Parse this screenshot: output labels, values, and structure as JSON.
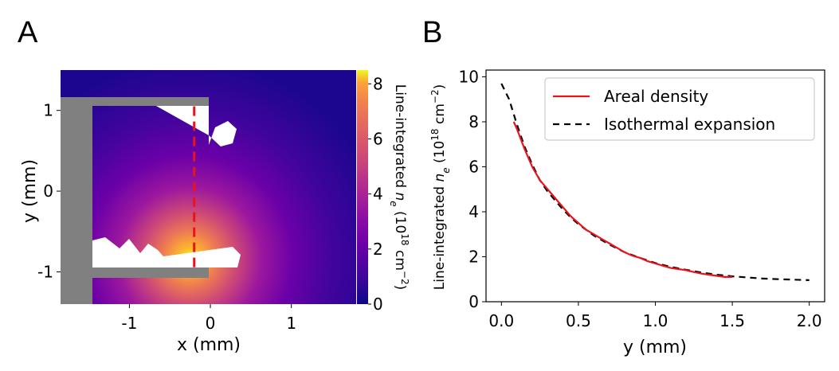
{
  "panel_labels": {
    "a": "A",
    "b": "B"
  },
  "chart_data": [
    {
      "type": "heatmap",
      "panel": "A",
      "title": "",
      "xlabel": "x (mm)",
      "ylabel": "y (mm)",
      "xlim": [
        -1.85,
        1.8
      ],
      "ylim": [
        -1.4,
        1.5
      ],
      "xticks": [
        -1,
        0,
        1
      ],
      "xtick_labels": [
        "-1",
        "0",
        "1"
      ],
      "yticks": [
        1,
        0,
        -1
      ],
      "ytick_labels": [
        "1",
        "0",
        "-1"
      ],
      "colorbar": {
        "label_prefix": "Line-integrated ",
        "label_var": "n",
        "label_sub": "e",
        "label_units_open": " (10",
        "label_units_exp": "18",
        "label_units_mid": " cm",
        "label_units_exp2": "−2",
        "label_units_close": ")",
        "min": 0,
        "max": 8.5,
        "ticks": [
          0,
          2,
          4,
          6,
          8
        ],
        "tick_labels": [
          "0",
          "2",
          "4",
          "6",
          "8"
        ],
        "colormap": "plasma"
      },
      "peak_density": 8.5,
      "peak_location": [
        -0.3,
        -0.85
      ],
      "lineout_x": -0.2,
      "lineout_y_range": [
        -0.95,
        1.05
      ],
      "lineout_color": "#e8141c",
      "target_color": "#808080"
    },
    {
      "type": "line",
      "panel": "B",
      "title": "",
      "xlabel": "y (mm)",
      "ylabel_prefix": "Line-integrated ",
      "ylabel_var": "n",
      "ylabel_sub": "e",
      "ylabel_units_open": " (10",
      "ylabel_units_exp": "18",
      "ylabel_units_mid": " cm",
      "ylabel_units_exp2": "−2",
      "ylabel_units_close": ")",
      "xlim": [
        -0.1,
        2.1
      ],
      "ylim": [
        0,
        10.3
      ],
      "xticks": [
        0.0,
        0.5,
        1.0,
        1.5,
        2.0
      ],
      "xtick_labels": [
        "0.0",
        "0.5",
        "1.0",
        "1.5",
        "2.0"
      ],
      "yticks": [
        0,
        2,
        4,
        6,
        8,
        10
      ],
      "ytick_labels": [
        "0",
        "2",
        "4",
        "6",
        "8",
        "10"
      ],
      "legend_position": "top-right",
      "series": [
        {
          "name": "Areal density",
          "color": "#e8141c",
          "style": "solid",
          "x": [
            0.08,
            0.1,
            0.15,
            0.2,
            0.25,
            0.3,
            0.35,
            0.4,
            0.45,
            0.5,
            0.55,
            0.6,
            0.65,
            0.7,
            0.75,
            0.8,
            0.85,
            0.9,
            0.95,
            1.0,
            1.05,
            1.1,
            1.15,
            1.2,
            1.25,
            1.3,
            1.35,
            1.4,
            1.45,
            1.5
          ],
          "y": [
            8.0,
            7.7,
            6.8,
            6.0,
            5.4,
            5.0,
            4.6,
            4.2,
            3.8,
            3.5,
            3.2,
            3.0,
            2.8,
            2.6,
            2.4,
            2.2,
            2.05,
            1.95,
            1.8,
            1.7,
            1.6,
            1.5,
            1.45,
            1.4,
            1.32,
            1.25,
            1.2,
            1.15,
            1.1,
            1.1
          ]
        },
        {
          "name": "Isothermal expansion",
          "color": "#000000",
          "style": "dashed",
          "x": [
            0.0,
            0.05,
            0.1,
            0.15,
            0.2,
            0.25,
            0.3,
            0.35,
            0.4,
            0.45,
            0.5,
            0.6,
            0.7,
            0.8,
            0.9,
            1.0,
            1.1,
            1.2,
            1.3,
            1.4,
            1.5,
            1.6,
            1.7,
            1.8,
            1.9,
            2.0
          ],
          "y": [
            9.7,
            9.0,
            7.9,
            6.9,
            6.1,
            5.4,
            4.9,
            4.5,
            4.1,
            3.75,
            3.45,
            2.95,
            2.55,
            2.2,
            1.95,
            1.72,
            1.55,
            1.42,
            1.3,
            1.2,
            1.13,
            1.08,
            1.03,
            1.0,
            0.98,
            0.96
          ]
        }
      ]
    }
  ]
}
